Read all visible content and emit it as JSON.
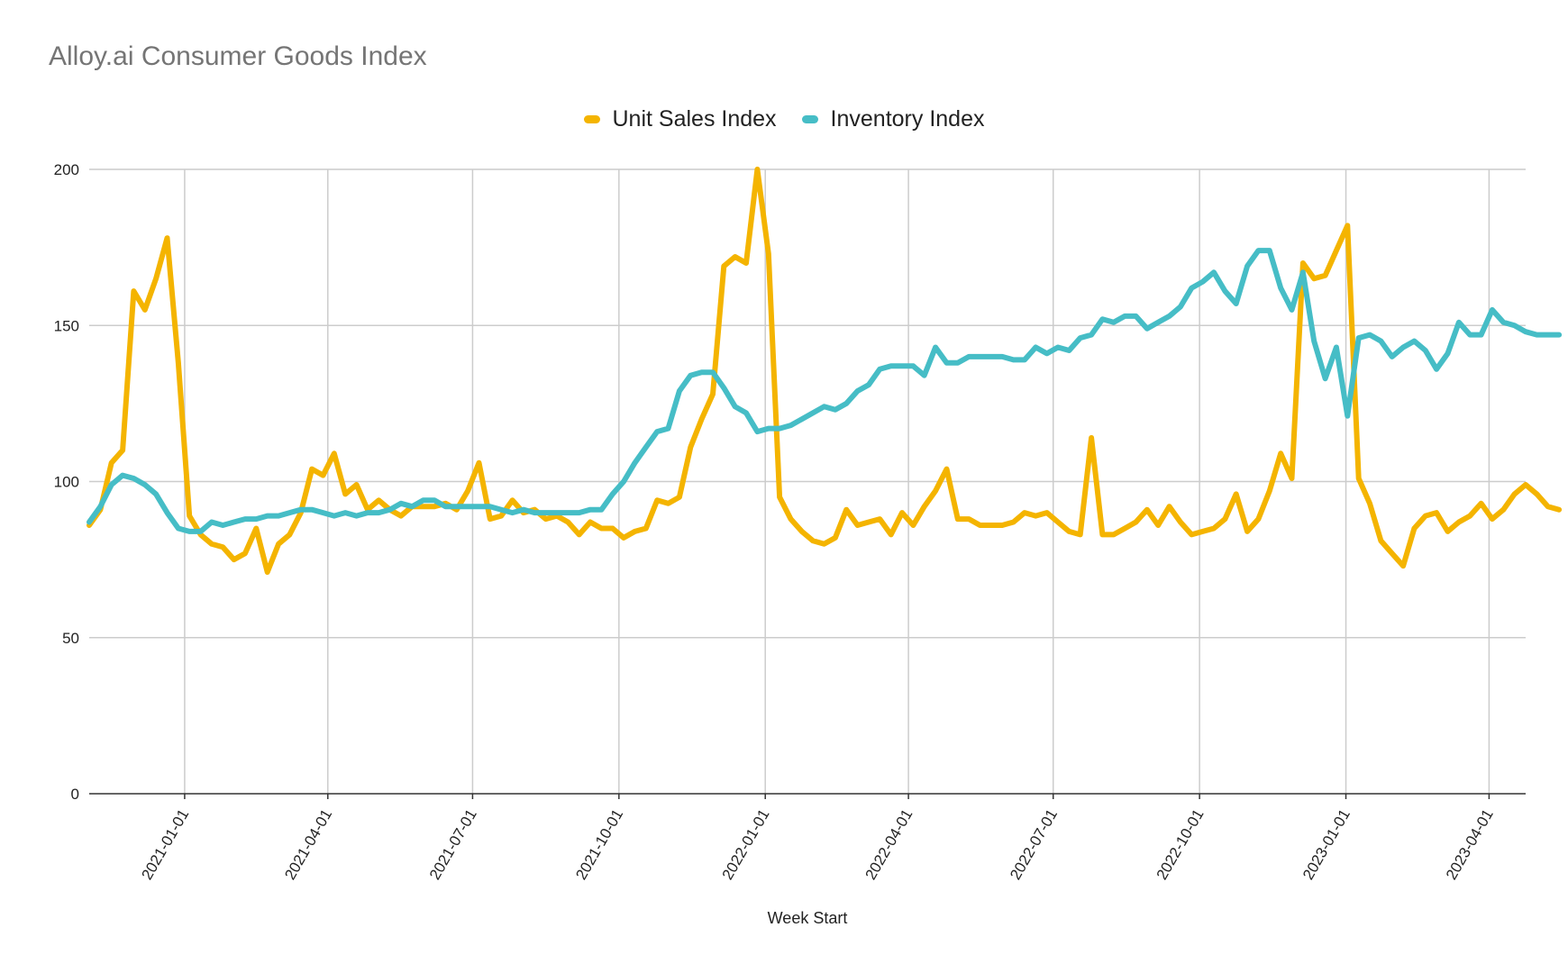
{
  "chart_data": {
    "type": "line",
    "title": "Alloy.ai Consumer Goods Index",
    "xlabel": "Week Start",
    "ylabel": "",
    "ylim": [
      0,
      200
    ],
    "yticks": [
      0,
      50,
      100,
      150,
      200
    ],
    "xlim": [
      "2020-11-02",
      "2023-04-24"
    ],
    "xticks": [
      "2021-01-01",
      "2021-04-01",
      "2021-07-01",
      "2021-10-01",
      "2022-01-01",
      "2022-04-01",
      "2022-07-01",
      "2022-10-01",
      "2023-01-01",
      "2023-04-01"
    ],
    "grid": true,
    "legend_position": "top",
    "x_start": "2020-11-02",
    "x_step_days": 7,
    "series": [
      {
        "name": "Unit Sales Index",
        "color": "#F4B400",
        "values": [
          86,
          91,
          106,
          110,
          161,
          155,
          165,
          178,
          138,
          89,
          83,
          80,
          79,
          75,
          77,
          85,
          71,
          80,
          83,
          90,
          104,
          102,
          109,
          96,
          99,
          91,
          94,
          91,
          89,
          92,
          92,
          92,
          93,
          91,
          97,
          106,
          88,
          89,
          94,
          90,
          91,
          88,
          89,
          87,
          83,
          87,
          85,
          85,
          82,
          84,
          85,
          94,
          93,
          95,
          111,
          120,
          128,
          169,
          172,
          170,
          200,
          173,
          95,
          88,
          84,
          81,
          80,
          82,
          91,
          86,
          87,
          88,
          83,
          90,
          86,
          92,
          97,
          104,
          88,
          88,
          86,
          86,
          86,
          87,
          90,
          89,
          90,
          87,
          84,
          83,
          114,
          83,
          83,
          85,
          87,
          91,
          86,
          92,
          87,
          83,
          84,
          85,
          88,
          96,
          84,
          88,
          97,
          109,
          101,
          170,
          165,
          166,
          174,
          182,
          101,
          93,
          81,
          77,
          73,
          85,
          89,
          90,
          84,
          87,
          89,
          93,
          88,
          91,
          96,
          99,
          96,
          92,
          91
        ]
      },
      {
        "name": "Inventory Index",
        "color": "#46BDC6",
        "values": [
          87,
          92,
          99,
          102,
          101,
          99,
          96,
          90,
          85,
          84,
          84,
          87,
          86,
          87,
          88,
          88,
          89,
          89,
          90,
          91,
          91,
          90,
          89,
          90,
          89,
          90,
          90,
          91,
          93,
          92,
          94,
          94,
          92,
          92,
          92,
          92,
          92,
          91,
          90,
          91,
          90,
          90,
          90,
          90,
          90,
          91,
          91,
          96,
          100,
          106,
          111,
          116,
          117,
          129,
          134,
          135,
          135,
          130,
          124,
          122,
          116,
          117,
          117,
          118,
          120,
          122,
          124,
          123,
          125,
          129,
          131,
          136,
          137,
          137,
          137,
          134,
          143,
          138,
          138,
          140,
          140,
          140,
          140,
          139,
          139,
          143,
          141,
          143,
          142,
          146,
          147,
          152,
          151,
          153,
          153,
          149,
          151,
          153,
          156,
          162,
          164,
          167,
          161,
          157,
          169,
          174,
          174,
          162,
          155,
          167,
          145,
          133,
          143,
          121,
          146,
          147,
          145,
          140,
          143,
          145,
          142,
          136,
          141,
          151,
          147,
          147,
          155,
          151,
          150,
          148,
          147,
          147,
          147
        ]
      }
    ]
  }
}
